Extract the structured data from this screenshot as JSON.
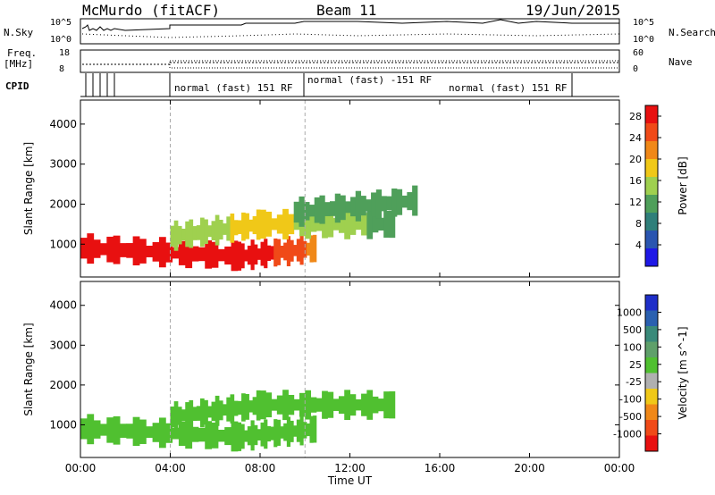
{
  "header": {
    "station": "McMurdo (fitACF)",
    "beam": "Beam 11",
    "date": "19/Jun/2015"
  },
  "top_panels": {
    "nsky_label": "N.Sky",
    "nsky_ticks": [
      "10^5",
      "10^0"
    ],
    "nsearch_label": "N.Search",
    "nsearch_ticks": [
      "10^5",
      "10^0"
    ],
    "freq_label": "Freq.",
    "freq_unit": "[MHz]",
    "freq_ticks": [
      "18",
      "8"
    ],
    "nave_label": "Nave",
    "nave_ticks": [
      "60",
      "0"
    ],
    "cpid_label": "CPID",
    "cpid_segments": [
      "normal (fast) 151 RF",
      "normal (fast) -151 RF",
      "normal (fast) 151 RF"
    ]
  },
  "chart_data": [
    {
      "type": "heatmap",
      "title": "",
      "xlabel": "",
      "ylabel": "Slant Range [km]",
      "x_ticks": [
        "00:00",
        "04:00",
        "08:00",
        "12:00",
        "16:00",
        "20:00",
        "00:00"
      ],
      "y_ticks": [
        1000,
        2000,
        3000,
        4000
      ],
      "xlim": [
        0,
        24
      ],
      "ylim": [
        180,
        4600
      ],
      "grid": false,
      "colorbar": {
        "label": "Power [dB]",
        "ticks": [
          4,
          8,
          12,
          16,
          20,
          24,
          28
        ],
        "range": [
          0,
          30
        ],
        "colors": [
          "#1e18e6",
          "#2a55b0",
          "#2f7f7a",
          "#4f9f5a",
          "#9fd04f",
          "#f0c818",
          "#f08818",
          "#f04a18",
          "#e81010"
        ]
      },
      "series": [
        {
          "t": [
            0,
            7,
            10.5
          ],
          "range": [
            900,
            700,
            900
          ],
          "values": [
            30,
            30,
            22
          ]
        },
        {
          "t": [
            4,
            8,
            14
          ],
          "range": [
            1200,
            1500,
            1500
          ],
          "values": [
            14,
            18,
            12
          ]
        },
        {
          "t": [
            9.5,
            15
          ],
          "range": [
            1800,
            2100
          ],
          "values": [
            12,
            10
          ]
        }
      ]
    },
    {
      "type": "heatmap",
      "title": "",
      "xlabel": "Time UT",
      "ylabel": "Slant Range [km]",
      "x_ticks": [
        "00:00",
        "04:00",
        "08:00",
        "12:00",
        "16:00",
        "20:00",
        "00:00"
      ],
      "y_ticks": [
        1000,
        2000,
        3000,
        4000
      ],
      "xlim": [
        0,
        24
      ],
      "ylim": [
        180,
        4600
      ],
      "grid": false,
      "colorbar": {
        "label": "Velocity [m s^-1]",
        "ticks": [
          1000,
          500,
          100,
          25,
          -25,
          -100,
          -500,
          -1000
        ],
        "range": [
          -1000,
          1000
        ],
        "colors": [
          "#1e2ec8",
          "#2a60b0",
          "#3a8a7a",
          "#5fa06a",
          "#50c030",
          "#b0b0b0",
          "#f0c818",
          "#f08818",
          "#f04a18",
          "#e81010"
        ]
      },
      "series": [
        {
          "t": [
            0,
            7,
            10.5
          ],
          "range": [
            900,
            700,
            900
          ],
          "values": [
            40,
            40,
            40
          ]
        },
        {
          "t": [
            4,
            8,
            14
          ],
          "range": [
            1200,
            1500,
            1500
          ],
          "values": [
            60,
            60,
            40
          ]
        }
      ]
    }
  ]
}
